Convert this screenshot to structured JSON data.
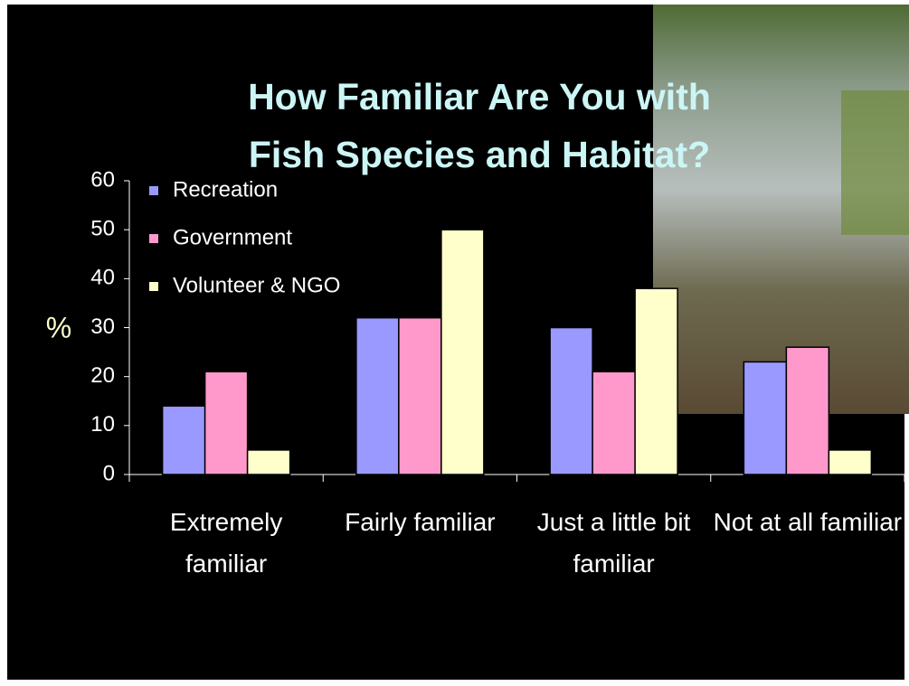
{
  "chart_data": {
    "type": "bar",
    "title": "How Familiar Are You with Fish Species and Habitat?",
    "y_label": "%",
    "categories": [
      "Extremely familiar",
      "Fairly familiar",
      "Just a little bit familiar",
      "Not at all familiar"
    ],
    "series": [
      {
        "name": "Recreation",
        "color": "#9999ff",
        "values": [
          14,
          32,
          30,
          23
        ]
      },
      {
        "name": "Government",
        "color": "#ff99cc",
        "values": [
          21,
          32,
          21,
          26
        ]
      },
      {
        "name": "Volunteer & NGO",
        "color": "#ffffcc",
        "values": [
          5,
          50,
          38,
          5
        ]
      }
    ],
    "ylim": [
      0,
      60
    ],
    "yticks": [
      0,
      10,
      20,
      30,
      40,
      50,
      60
    ],
    "grid": false,
    "legend": "upper left"
  }
}
